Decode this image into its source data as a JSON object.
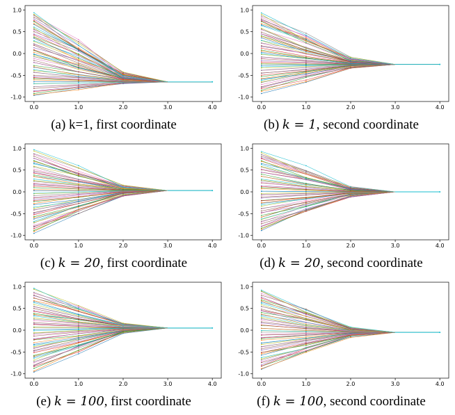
{
  "figure": {
    "panels": [
      {
        "id": "a",
        "caption_label": "(a)",
        "caption_text": "k=1, first coordinate",
        "caption_math": "",
        "caption_rest": ""
      },
      {
        "id": "b",
        "caption_label": "(b)",
        "caption_text": "",
        "caption_math": "k = 1",
        "caption_rest": ", second coordinate"
      },
      {
        "id": "c",
        "caption_label": "(c)",
        "caption_text": "",
        "caption_math": "k = 20",
        "caption_rest": ", first coordinate"
      },
      {
        "id": "d",
        "caption_label": "(d)",
        "caption_text": "",
        "caption_math": "k = 20",
        "caption_rest": ", second coordinate"
      },
      {
        "id": "e",
        "caption_label": "(e)",
        "caption_text": "",
        "caption_math": "k = 100",
        "caption_rest": ", first coordinate"
      },
      {
        "id": "f",
        "caption_label": "(f)",
        "caption_text": "",
        "caption_math": "k = 100",
        "caption_rest": ", second coordinate"
      }
    ]
  },
  "chart_data": [
    {
      "type": "line",
      "panel": "a",
      "x": [
        0.0,
        1.0,
        2.0,
        3.0,
        4.0
      ],
      "xlim": [
        0.0,
        4.0
      ],
      "ylim": [
        -1.0,
        1.0
      ],
      "xticks": [
        "0.0",
        "1.0",
        "2.0",
        "3.0",
        "4.0"
      ],
      "yticks": [
        "-1.0",
        "-0.5",
        "0.0",
        "0.5",
        "1.0"
      ],
      "n_series": 60,
      "initial_range": [
        -0.97,
        0.95
      ],
      "converged_value": -0.65,
      "converged_at_x": 3.0,
      "grid": false
    },
    {
      "type": "line",
      "panel": "b",
      "x": [
        0.0,
        1.0,
        2.0,
        3.0,
        4.0
      ],
      "xlim": [
        0.0,
        4.0
      ],
      "ylim": [
        -1.0,
        1.0
      ],
      "xticks": [
        "0.0",
        "1.0",
        "2.0",
        "3.0",
        "4.0"
      ],
      "yticks": [
        "-1.0",
        "-0.5",
        "0.0",
        "0.5",
        "1.0"
      ],
      "n_series": 60,
      "initial_range": [
        -0.9,
        0.93
      ],
      "converged_value": -0.25,
      "converged_at_x": 3.0,
      "grid": false
    },
    {
      "type": "line",
      "panel": "c",
      "x": [
        0.0,
        1.0,
        2.0,
        3.0,
        4.0
      ],
      "xlim": [
        0.0,
        4.0
      ],
      "ylim": [
        -1.0,
        1.0
      ],
      "xticks": [
        "0.0",
        "1.0",
        "2.0",
        "3.0",
        "4.0"
      ],
      "yticks": [
        "-1.0",
        "-0.5",
        "0.0",
        "0.5",
        "1.0"
      ],
      "n_series": 60,
      "initial_range": [
        -0.95,
        0.95
      ],
      "converged_value": 0.03,
      "converged_at_x": 3.0,
      "grid": false
    },
    {
      "type": "line",
      "panel": "d",
      "x": [
        0.0,
        1.0,
        2.0,
        3.0,
        4.0
      ],
      "xlim": [
        0.0,
        4.0
      ],
      "ylim": [
        -1.0,
        1.0
      ],
      "xticks": [
        "0.0",
        "1.0",
        "2.0",
        "3.0",
        "4.0"
      ],
      "yticks": [
        "-1.0",
        "-0.5",
        "0.0",
        "0.5",
        "1.0"
      ],
      "n_series": 60,
      "initial_range": [
        -0.9,
        0.93
      ],
      "converged_value": 0.0,
      "converged_at_x": 3.0,
      "grid": false
    },
    {
      "type": "line",
      "panel": "e",
      "x": [
        0.0,
        1.0,
        2.0,
        3.0,
        4.0
      ],
      "xlim": [
        0.0,
        4.0
      ],
      "ylim": [
        -1.0,
        1.0
      ],
      "xticks": [
        "0.0",
        "1.0",
        "2.0",
        "3.0",
        "4.0"
      ],
      "yticks": [
        "-1.0",
        "-0.5",
        "0.0",
        "0.5",
        "1.0"
      ],
      "n_series": 60,
      "initial_range": [
        -0.95,
        0.95
      ],
      "converged_value": 0.05,
      "converged_at_x": 3.0,
      "grid": false
    },
    {
      "type": "line",
      "panel": "f",
      "x": [
        0.0,
        1.0,
        2.0,
        3.0,
        4.0
      ],
      "xlim": [
        0.0,
        4.0
      ],
      "ylim": [
        -1.0,
        1.0
      ],
      "xticks": [
        "0.0",
        "1.0",
        "2.0",
        "3.0",
        "4.0"
      ],
      "yticks": [
        "-1.0",
        "-0.5",
        "0.0",
        "0.5",
        "1.0"
      ],
      "n_series": 60,
      "initial_range": [
        -0.9,
        0.93
      ],
      "converged_value": -0.05,
      "converged_at_x": 3.0,
      "grid": false
    }
  ],
  "palette": [
    "#1f77b4",
    "#ff7f0e",
    "#2ca02c",
    "#d62728",
    "#9467bd",
    "#8c564b",
    "#e377c2",
    "#7f7f7f",
    "#bcbd22",
    "#17becf"
  ]
}
